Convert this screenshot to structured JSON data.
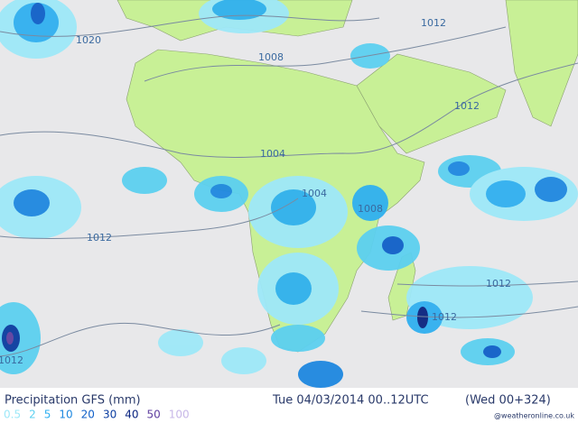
{
  "map": {
    "isobar_labels": [
      "1020",
      "1008",
      "1012",
      "1012",
      "1004",
      "1004",
      "1008",
      "1012",
      "1012",
      "1012",
      "1012"
    ],
    "title": "Precipitation GFS (mm)",
    "valid_time": "Tue 04/03/2014 00..12UTC",
    "forecast": "(Wed 00+324)",
    "legend": {
      "labels": [
        "0.5",
        "2",
        "5",
        "10",
        "20",
        "30",
        "40",
        "50",
        "100"
      ],
      "colors": [
        "#9ee8f8",
        "#5cd0f0",
        "#30b0f0",
        "#1e88e0",
        "#1060c8",
        "#0a3ca0",
        "#0a2480",
        "#6040a0",
        "#c8b8e8"
      ]
    },
    "credit": "@weatheronline.co.uk"
  }
}
